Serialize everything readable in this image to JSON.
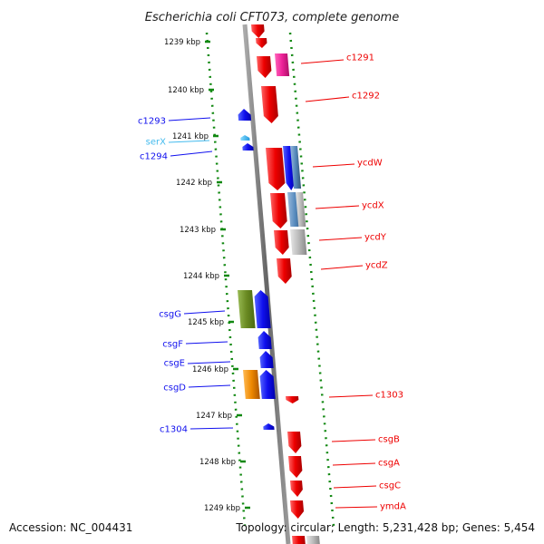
{
  "title": "Escherichia coli CFT073, complete genome",
  "footer": {
    "accession": "Accession: NC_004431",
    "info": "Topology: circular; Length: 5,231,428 bp; Genes: 5,454"
  },
  "colors": {
    "red": "#ee0000",
    "blue": "#1010ee",
    "magenta": "#ee2299",
    "olive": "#6a8a22",
    "orange": "#ee8800",
    "cyan": "#44bbee",
    "steel": "#5588bb",
    "grey": "#bbbbbb",
    "dots": "#118811",
    "backbone": "#888888"
  },
  "ticks": [
    {
      "label": "1239 kbp"
    },
    {
      "label": "1240 kbp"
    },
    {
      "label": "1241 kbp"
    },
    {
      "label": "1242 kbp"
    },
    {
      "label": "1243 kbp"
    },
    {
      "label": "1244 kbp"
    },
    {
      "label": "1245 kbp"
    },
    {
      "label": "1246 kbp"
    },
    {
      "label": "1247 kbp"
    },
    {
      "label": "1248 kbp"
    },
    {
      "label": "1249 kbp"
    }
  ],
  "genes_left": [
    {
      "name": "c1293",
      "color": "blue"
    },
    {
      "name": "serX",
      "color": "cyan"
    },
    {
      "name": "c1294",
      "color": "blue"
    },
    {
      "name": "csgG",
      "color": "blue"
    },
    {
      "name": "csgF",
      "color": "blue"
    },
    {
      "name": "csgE",
      "color": "blue"
    },
    {
      "name": "csgD",
      "color": "blue"
    },
    {
      "name": "c1304",
      "color": "blue"
    }
  ],
  "genes_right": [
    {
      "name": "c1291",
      "color": "red"
    },
    {
      "name": "c1292",
      "color": "red"
    },
    {
      "name": "ycdW",
      "color": "red"
    },
    {
      "name": "ycdX",
      "color": "red"
    },
    {
      "name": "ycdY",
      "color": "red"
    },
    {
      "name": "ycdZ",
      "color": "red"
    },
    {
      "name": "c1303",
      "color": "red"
    },
    {
      "name": "csgB",
      "color": "red"
    },
    {
      "name": "csgA",
      "color": "red"
    },
    {
      "name": "csgC",
      "color": "red"
    },
    {
      "name": "ymdA",
      "color": "red"
    }
  ]
}
